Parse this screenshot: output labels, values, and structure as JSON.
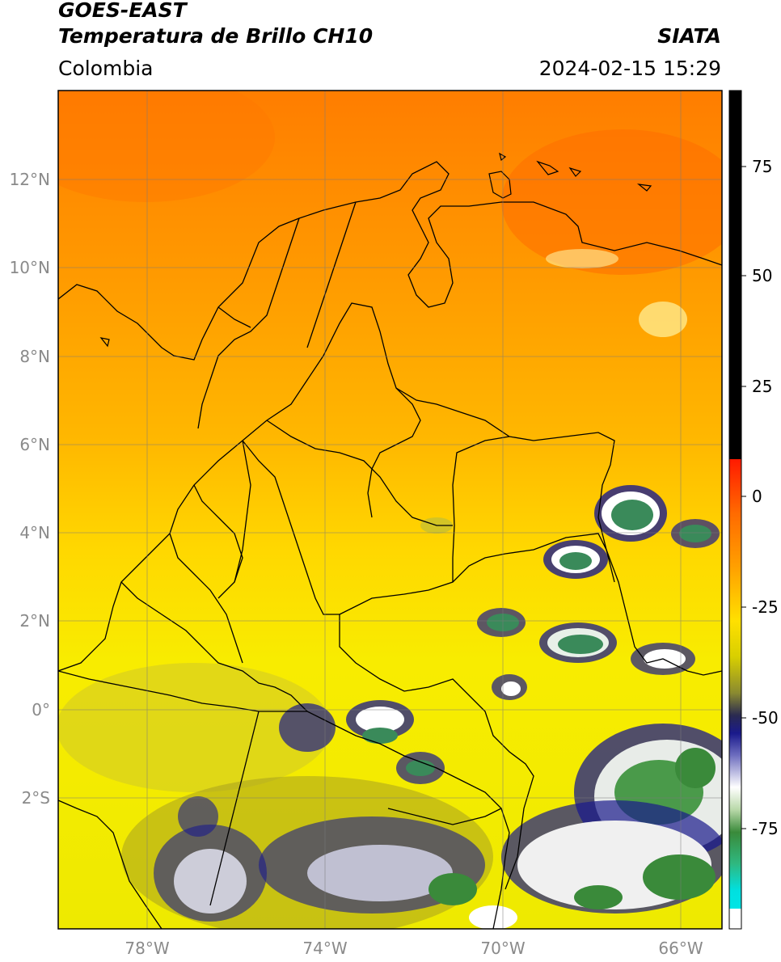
{
  "header": {
    "satellite": "GOES-EAST",
    "product": "Temperatura de Brillo CH10",
    "region": "Colombia",
    "agency": "SIATA",
    "datetime": "2024-02-15 15:29"
  },
  "map": {
    "lon_labels": [
      "78°W",
      "74°W",
      "70°W",
      "66°W"
    ],
    "lat_labels": [
      "12°N",
      "10°N",
      "8°N",
      "6°N",
      "4°N",
      "2°N",
      "0°",
      "2°S"
    ],
    "lon_range": [
      -80,
      -65
    ],
    "lat_range": [
      -5,
      14
    ]
  },
  "colorbar": {
    "ticks": [
      "75",
      "50",
      "25",
      "0",
      "-25",
      "-50",
      "-75"
    ],
    "range": [
      -95,
      90
    ],
    "colors": {
      "hot": "#000000",
      "red": "#ff1a00",
      "orange": "#ff9000",
      "yellow": "#f5ec00",
      "olive": "#a8a020",
      "navy": "#1a1a8c",
      "white": "#ffffff",
      "green": "#2f8a3a",
      "cyan": "#00e5e5"
    }
  }
}
